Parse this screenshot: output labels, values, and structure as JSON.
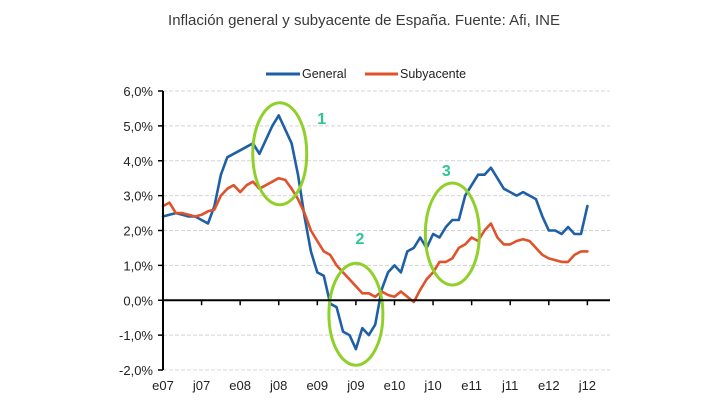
{
  "chart_data": {
    "type": "line",
    "title": "Inflación general y subyacente de España. Fuente: Afi, INE",
    "xlabel": "",
    "ylabel": "",
    "ylim": [
      -2.0,
      6.0
    ],
    "yticks": [
      6.0,
      5.0,
      4.0,
      3.0,
      2.0,
      1.0,
      0.0,
      -1.0,
      -2.0
    ],
    "ytick_labels": [
      "6,0%",
      "5,0%",
      "4,0%",
      "3,0%",
      "2,0%",
      "1,0%",
      "0,0%",
      "-1,0%",
      "-2,0%"
    ],
    "xtick_labels": [
      "e07",
      "j07",
      "e08",
      "j08",
      "e09",
      "j09",
      "e10",
      "j10",
      "e11",
      "j11",
      "e12",
      "j12"
    ],
    "xtick_months": [
      0,
      6,
      12,
      18,
      24,
      30,
      36,
      42,
      48,
      54,
      60,
      66
    ],
    "grid": true,
    "legend_position": "top-center",
    "series": [
      {
        "name": "General",
        "color": "#1f5fa6",
        "values": [
          2.4,
          2.45,
          2.5,
          2.45,
          2.4,
          2.4,
          2.3,
          2.2,
          2.7,
          3.6,
          4.1,
          4.2,
          4.3,
          4.4,
          4.5,
          4.2,
          4.6,
          5.0,
          5.3,
          4.9,
          4.5,
          3.6,
          2.4,
          1.4,
          0.8,
          0.7,
          -0.1,
          -0.2,
          -0.9,
          -1.0,
          -1.4,
          -0.8,
          -1.0,
          -0.7,
          0.3,
          0.8,
          1.0,
          0.8,
          1.4,
          1.5,
          1.8,
          1.5,
          1.9,
          1.8,
          2.1,
          2.3,
          2.3,
          3.0,
          3.3,
          3.6,
          3.6,
          3.8,
          3.5,
          3.2,
          3.1,
          3.0,
          3.1,
          3.0,
          2.9,
          2.4,
          2.0,
          2.0,
          1.9,
          2.1,
          1.9,
          1.9,
          2.7
        ]
      },
      {
        "name": "Subyacente",
        "color": "#e0522a",
        "values": [
          2.7,
          2.8,
          2.5,
          2.5,
          2.45,
          2.4,
          2.45,
          2.55,
          2.6,
          3.0,
          3.2,
          3.3,
          3.1,
          3.3,
          3.4,
          3.2,
          3.3,
          3.4,
          3.5,
          3.45,
          3.2,
          2.9,
          2.5,
          2.0,
          1.7,
          1.4,
          1.3,
          1.0,
          0.8,
          0.6,
          0.4,
          0.2,
          0.2,
          0.1,
          0.25,
          0.15,
          0.1,
          0.25,
          0.1,
          -0.05,
          0.3,
          0.6,
          0.8,
          1.1,
          1.1,
          1.2,
          1.5,
          1.6,
          1.8,
          1.7,
          2.0,
          2.2,
          1.8,
          1.6,
          1.6,
          1.7,
          1.75,
          1.7,
          1.5,
          1.3,
          1.2,
          1.15,
          1.1,
          1.1,
          1.3,
          1.4,
          1.4
        ]
      }
    ],
    "annotations": [
      {
        "label": "1",
        "month": 18,
        "value": 4.2
      },
      {
        "label": "2",
        "month": 30,
        "value": -0.4
      },
      {
        "label": "3",
        "month": 45,
        "value": 1.9
      }
    ],
    "annotation_colors": {
      "ellipse": "#8fd12a",
      "label": "#2cc78e"
    }
  }
}
